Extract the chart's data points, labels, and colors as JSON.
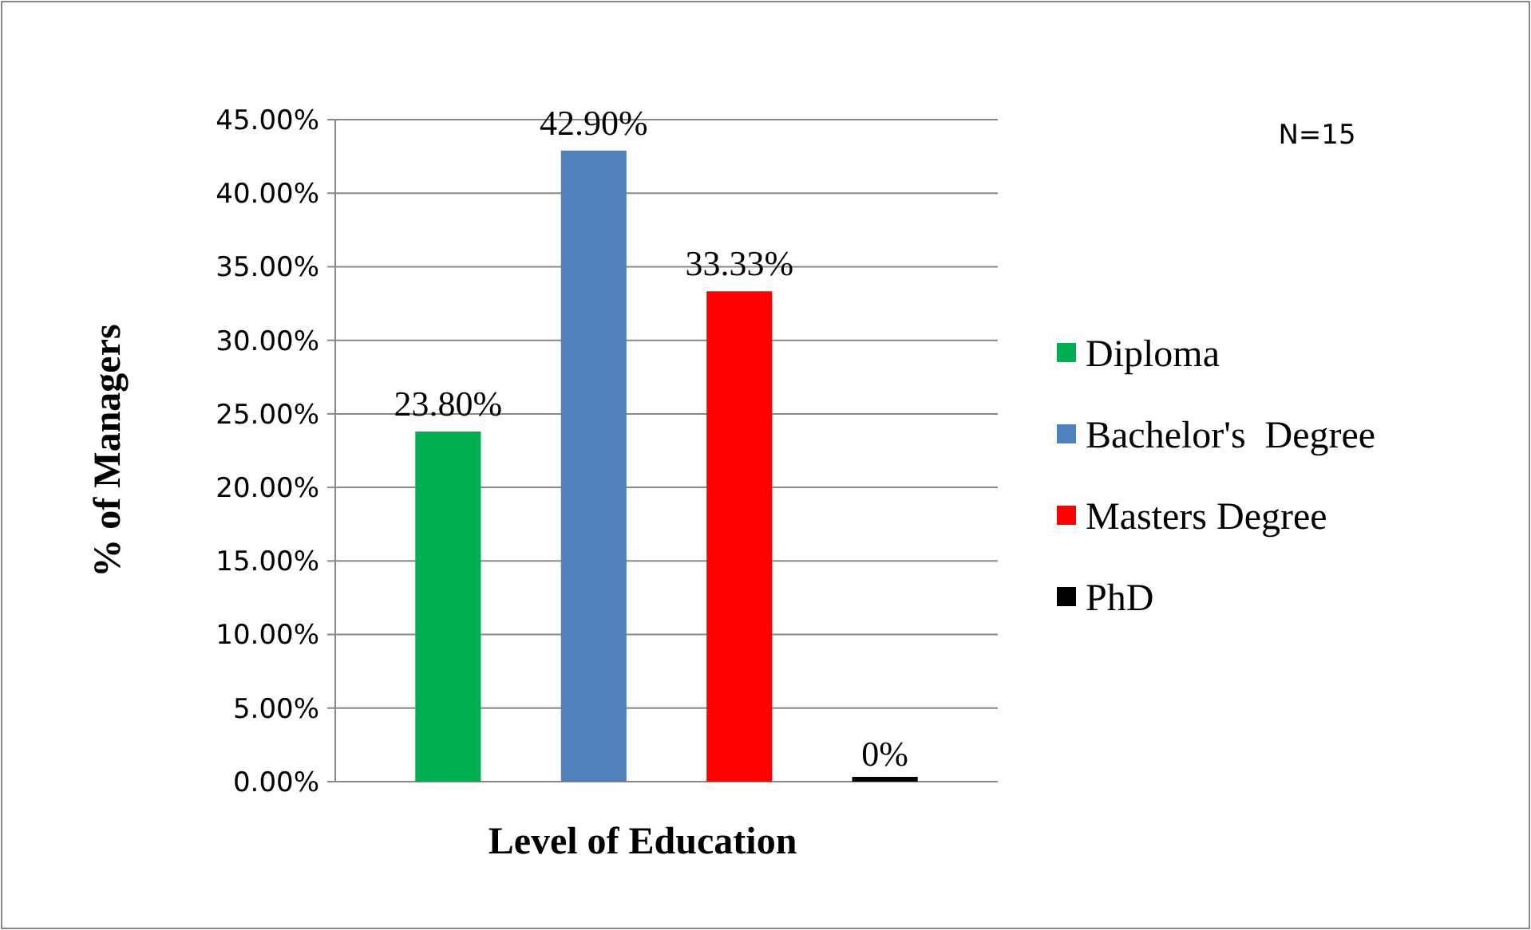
{
  "chart_data": {
    "type": "bar",
    "xlabel": "Level of Education",
    "ylabel": "% of Managers",
    "categories": [
      null,
      null,
      null,
      null
    ],
    "series": [
      {
        "name": "Diploma",
        "color": "#00b050",
        "values": [
          23.8,
          null,
          null,
          null
        ],
        "value_labels": [
          "23.80%",
          null,
          null,
          null
        ]
      },
      {
        "name": "Bachelor's  Degree",
        "color": "#4f81bd",
        "values": [
          null,
          42.9,
          null,
          null
        ],
        "value_labels": [
          null,
          "42.90%",
          null,
          null
        ]
      },
      {
        "name": "Masters Degree",
        "color": "#ff0000",
        "values": [
          null,
          null,
          33.33,
          null
        ],
        "value_labels": [
          null,
          null,
          "33.33%",
          null
        ]
      },
      {
        "name": "PhD",
        "color": "#000000",
        "values": [
          null,
          null,
          null,
          0
        ],
        "value_labels": [
          null,
          null,
          null,
          "0%"
        ]
      }
    ],
    "ylim": [
      0,
      45
    ],
    "yticks": [
      {
        "value": 0,
        "label": "0.00%"
      },
      {
        "value": 5,
        "label": "5.00%"
      },
      {
        "value": 10,
        "label": "10.00%"
      },
      {
        "value": 15,
        "label": "15.00%"
      },
      {
        "value": 20,
        "label": "20.00%"
      },
      {
        "value": 25,
        "label": "25.00%"
      },
      {
        "value": 30,
        "label": "30.00%"
      },
      {
        "value": 35,
        "label": "35.00%"
      },
      {
        "value": 40,
        "label": "40.00%"
      },
      {
        "value": 45,
        "label": "45.00%"
      }
    ],
    "grid": "y",
    "legend": "right",
    "annotations": [
      "N=15"
    ]
  }
}
